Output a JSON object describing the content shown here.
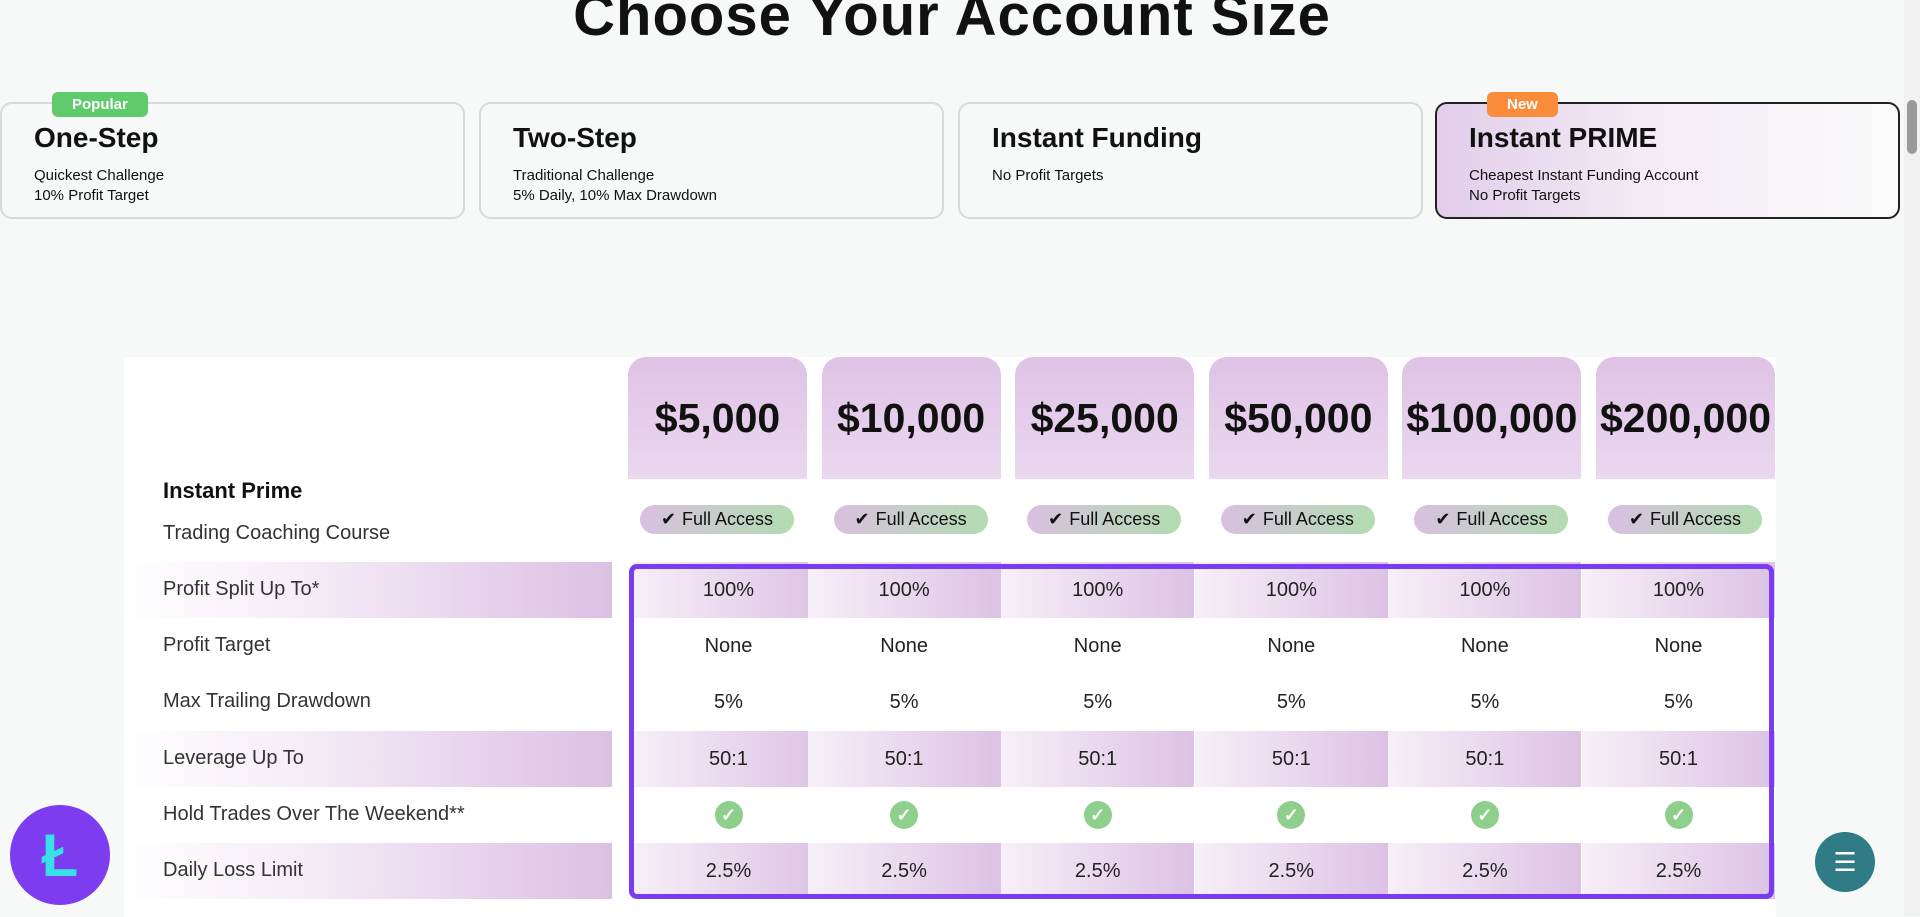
{
  "title": "Choose Your Account Size",
  "plans": [
    {
      "name": "One-Step",
      "badge": "Popular",
      "badge_color": "#5fcb6d",
      "lines": [
        "Quickest Challenge",
        "10% Profit Target"
      ]
    },
    {
      "name": "Two-Step",
      "lines": [
        "Traditional Challenge",
        "5% Daily, 10% Max Drawdown"
      ]
    },
    {
      "name": "Instant Funding",
      "lines": [
        "No Profit Targets"
      ]
    },
    {
      "name": "Instant PRIME",
      "badge": "New",
      "badge_color": "#fb8c3c",
      "selected": true,
      "lines": [
        "Cheapest Instant Funding Account",
        "No Profit Targets"
      ]
    }
  ],
  "table": {
    "plan_title": "Instant Prime",
    "sizes": [
      "$5,000",
      "$10,000",
      "$25,000",
      "$50,000",
      "$100,000",
      "$200,000"
    ],
    "coaching_label": "Trading Coaching Course",
    "coaching_value": "Full Access",
    "rows": [
      {
        "label": "Profit Split Up To*",
        "value": "100%"
      },
      {
        "label": "Profit Target",
        "value": "None"
      },
      {
        "label": "Max Trailing Drawdown",
        "value": "5%"
      },
      {
        "label": "Leverage Up To",
        "value": "50:1"
      },
      {
        "label": "Hold Trades Over The Weekend**",
        "value": "check-icon"
      },
      {
        "label": "Daily Loss Limit",
        "value": "2.5%"
      }
    ]
  },
  "accent_color": "#7a3cf0"
}
